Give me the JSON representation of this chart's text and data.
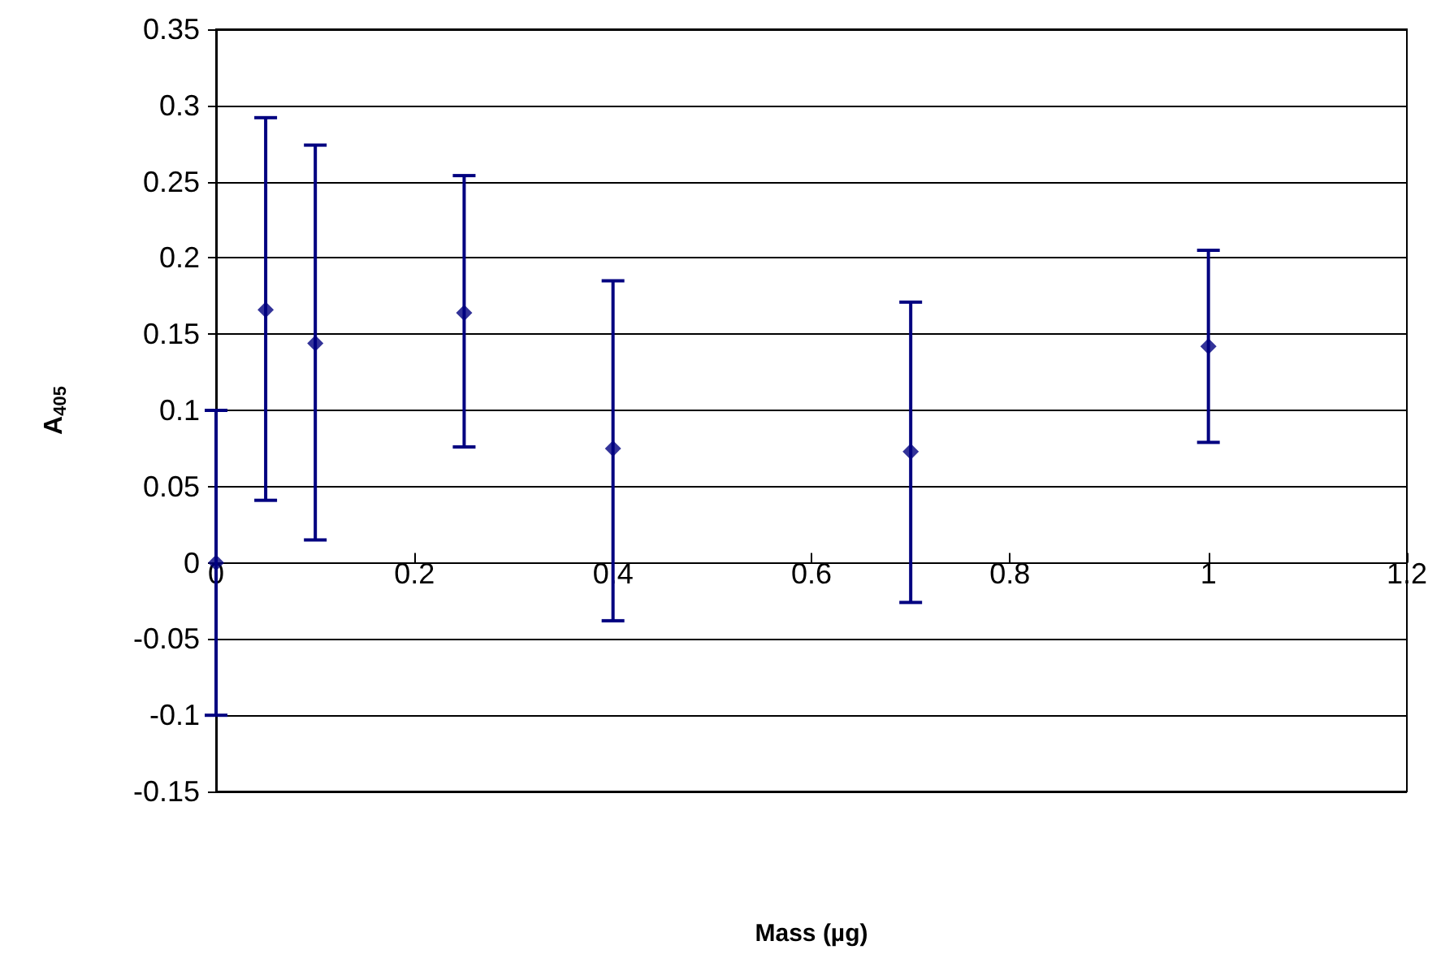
{
  "chart_data": {
    "type": "scatter",
    "xlabel": "Mass (µg)",
    "ylabel": "A$_{405}$",
    "x": [
      0,
      0.05,
      0.1,
      0.25,
      0.4,
      0.7,
      1
    ],
    "series": [
      {
        "color": "#000080",
        "values": [
          0,
          0.166,
          0.144,
          0.164,
          0.075,
          0.073,
          0.142
        ],
        "errors": [
          [
            -0.1,
            0.1
          ],
          [
            0.041,
            0.292
          ],
          [
            0.015,
            0.274
          ],
          [
            0.076,
            0.254
          ],
          [
            -0.038,
            0.185
          ],
          [
            -0.026,
            0.171
          ],
          [
            0.079,
            0.205
          ]
        ]
      }
    ],
    "xlim": [
      0,
      1.2
    ],
    "xticks": [
      0,
      0.2,
      0.4,
      0.6,
      0.8,
      1,
      1.2
    ],
    "ylim": [
      -0.15,
      0.35
    ],
    "yticks": [
      -0.15,
      -0.1,
      -0.05,
      0,
      0.05,
      0.1,
      0.15,
      0.2,
      0.25,
      0.3,
      0.35
    ],
    "grid": "y",
    "marker": "diamond"
  }
}
